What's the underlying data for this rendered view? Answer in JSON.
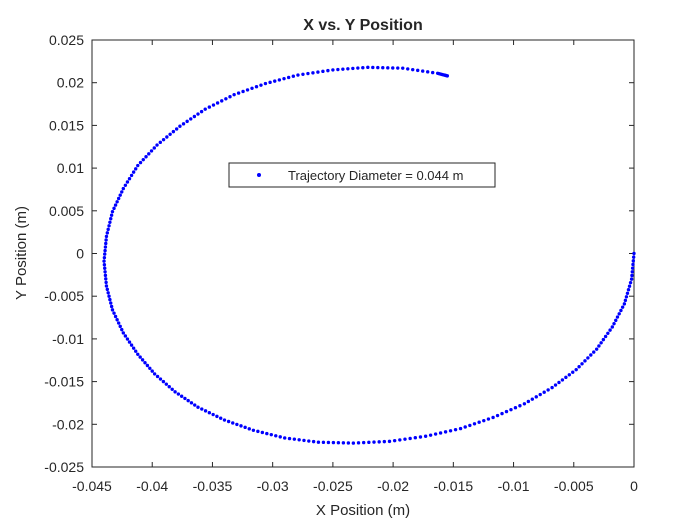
{
  "chart_data": {
    "type": "scatter",
    "title": "X vs. Y Position",
    "xlabel": "X Position (m)",
    "ylabel": "Y Position (m)",
    "xlim": [
      -0.045,
      0
    ],
    "ylim": [
      -0.025,
      0.025
    ],
    "xticks": [
      -0.045,
      -0.04,
      -0.035,
      -0.03,
      -0.025,
      -0.02,
      -0.015,
      -0.01,
      -0.005,
      0
    ],
    "xtick_labels": [
      "-0.045",
      "-0.04",
      "-0.035",
      "-0.03",
      "-0.025",
      "-0.02",
      "-0.015",
      "-0.01",
      "-0.005",
      "0"
    ],
    "yticks": [
      -0.025,
      -0.02,
      -0.015,
      -0.01,
      -0.005,
      0,
      0.005,
      0.01,
      0.015,
      0.02,
      0.025
    ],
    "ytick_labels": [
      "-0.025",
      "-0.02",
      "-0.015",
      "-0.01",
      "-0.005",
      "0",
      "0.005",
      "0.01",
      "0.015",
      "0.02",
      "0.025"
    ],
    "grid": false,
    "legend_position": "center",
    "series": [
      {
        "name": "Trajectory Diameter = 0.044 m",
        "color": "#0000ff",
        "marker": "dot",
        "x": [
          0,
          -0.0002,
          -0.0008,
          -0.0018,
          -0.0031,
          -0.0048,
          -0.0068,
          -0.0091,
          -0.0117,
          -0.0144,
          -0.0173,
          -0.0203,
          -0.0233,
          -0.0262,
          -0.029,
          -0.0316,
          -0.034,
          -0.0362,
          -0.0381,
          -0.0398,
          -0.0412,
          -0.0424,
          -0.0433,
          -0.0438,
          -0.044,
          -0.0438,
          -0.0433,
          -0.0424,
          -0.0412,
          -0.0396,
          -0.0377,
          -0.0356,
          -0.0332,
          -0.0306,
          -0.0279,
          -0.025,
          -0.0221,
          -0.0192,
          -0.0163,
          -0.0155
        ],
        "y": [
          0,
          -0.003,
          -0.0059,
          -0.0086,
          -0.0112,
          -0.0136,
          -0.0157,
          -0.0176,
          -0.0192,
          -0.0205,
          -0.0214,
          -0.022,
          -0.0222,
          -0.0221,
          -0.0216,
          -0.0207,
          -0.0195,
          -0.018,
          -0.0162,
          -0.0141,
          -0.0118,
          -0.0093,
          -0.0066,
          -0.0038,
          -0.0009,
          0.002,
          0.0049,
          0.0076,
          0.0103,
          0.0127,
          0.0149,
          0.0169,
          0.0186,
          0.0199,
          0.0209,
          0.0215,
          0.0218,
          0.0217,
          0.0211,
          0.0208
        ]
      }
    ]
  }
}
